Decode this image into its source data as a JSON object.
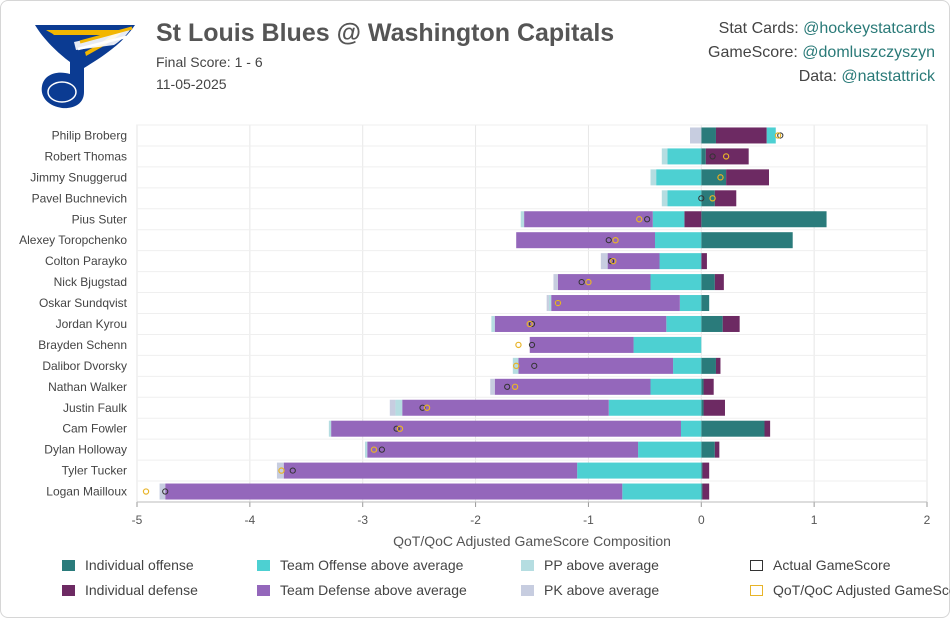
{
  "header": {
    "title": "St Louis Blues @ Washington Capitals",
    "final_score": "Final Score: 1 - 6",
    "date": "11-05-2025"
  },
  "credits": [
    {
      "label": "Stat Cards: ",
      "handle": "@hockeystatcards"
    },
    {
      "label": "GameScore: ",
      "handle": "@domluszczyszyn"
    },
    {
      "label": "Data: ",
      "handle": "@natstattrick"
    }
  ],
  "colors": {
    "individual_offense": "#2a7b7b",
    "individual_defense": "#6d2a63",
    "team_offense": "#4dd0d2",
    "team_defense": "#9467bb",
    "pp": "#b5dde1",
    "pk": "#c7cde0",
    "actual_marker": "#333333",
    "adjusted_marker": "#e8b429",
    "logo_blue": "#0b3b92",
    "logo_gold": "#f2b600"
  },
  "legend": [
    {
      "key": "individual_offense",
      "label": "Individual offense",
      "style": "fill"
    },
    {
      "key": "team_offense",
      "label": "Team Offense above average",
      "style": "fill"
    },
    {
      "key": "pp",
      "label": "PP above average",
      "style": "fill"
    },
    {
      "key": "actual_marker",
      "label": "Actual GameScore",
      "style": "outline"
    },
    {
      "key": "individual_defense",
      "label": "Individual defense",
      "style": "fill"
    },
    {
      "key": "team_defense",
      "label": "Team Defense above average",
      "style": "fill"
    },
    {
      "key": "pk",
      "label": "PK above average",
      "style": "fill"
    },
    {
      "key": "adjusted_marker",
      "label": "QoT/QoC Adjusted GameScore",
      "style": "outline"
    }
  ],
  "chart_data": {
    "type": "bar",
    "orientation": "horizontal",
    "stacked": true,
    "title": "",
    "xlabel": "QoT/QoC Adjusted GameScore Composition",
    "xlim": [
      -5,
      2
    ],
    "xticks": [
      -5,
      -4,
      -3,
      -2,
      -1,
      0,
      1,
      2
    ],
    "grid": true,
    "legend_position": "bottom",
    "categories": [
      "Philip Broberg",
      "Robert Thomas",
      "Jimmy Snuggerud",
      "Pavel Buchnevich",
      "Pius Suter",
      "Alexey Toropchenko",
      "Colton Parayko",
      "Nick Bjugstad",
      "Oskar Sundqvist",
      "Jordan Kyrou",
      "Brayden Schenn",
      "Dalibor Dvorsky",
      "Nathan Walker",
      "Justin Faulk",
      "Cam Fowler",
      "Dylan Holloway",
      "Tyler Tucker",
      "Logan Mailloux"
    ],
    "series": [
      {
        "name": "Individual offense",
        "key": "individual_offense",
        "values": [
          0.13,
          0.04,
          0.22,
          0.12,
          1.11,
          0.81,
          0.0,
          0.12,
          0.07,
          0.19,
          0.0,
          0.13,
          0.02,
          0.02,
          0.56,
          0.12,
          0.01,
          0.01
        ]
      },
      {
        "name": "Individual defense",
        "key": "individual_defense",
        "values": [
          0.45,
          0.38,
          0.38,
          0.19,
          -0.15,
          0.0,
          0.05,
          0.08,
          0.0,
          0.15,
          0.0,
          0.04,
          0.09,
          0.19,
          0.05,
          0.04,
          0.06,
          0.06
        ]
      },
      {
        "name": "Team Offense above average",
        "key": "team_offense",
        "values": [
          0.08,
          -0.3,
          -0.4,
          -0.3,
          -0.28,
          -0.41,
          -0.37,
          -0.45,
          -0.19,
          -0.31,
          -0.6,
          -0.25,
          -0.45,
          -0.82,
          -0.18,
          -0.56,
          -1.1,
          -0.7
        ]
      },
      {
        "name": "Team Defense above average",
        "key": "team_defense",
        "values": [
          0.0,
          0.0,
          0.0,
          0.0,
          -1.14,
          -1.23,
          -0.46,
          -0.82,
          -1.14,
          -1.52,
          -0.92,
          -1.37,
          -1.38,
          -1.83,
          -3.1,
          -2.4,
          -2.6,
          -4.05
        ]
      },
      {
        "name": "PP above average",
        "key": "pp",
        "values": [
          0.0,
          -0.05,
          -0.05,
          -0.05,
          -0.03,
          0.0,
          0.0,
          0.0,
          -0.02,
          -0.03,
          0.0,
          -0.05,
          0.0,
          -0.06,
          -0.02,
          -0.02,
          0.0,
          0.0
        ]
      },
      {
        "name": "PK above average",
        "key": "pk",
        "values": [
          -0.1,
          0.0,
          0.0,
          0.0,
          0.0,
          0.0,
          -0.06,
          -0.04,
          -0.02,
          0.0,
          0.0,
          0.0,
          -0.04,
          -0.05,
          0.0,
          0.0,
          -0.06,
          -0.05
        ]
      }
    ],
    "actual_gamescore": [
      0.7,
      0.1,
      0.17,
      0.0,
      -0.48,
      -0.82,
      -0.8,
      -1.06,
      -1.27,
      -1.5,
      -1.5,
      -1.48,
      -1.72,
      -2.47,
      -2.7,
      -2.83,
      -3.62,
      -4.75
    ],
    "adjusted_gamescore": [
      0.68,
      0.22,
      0.17,
      0.1,
      -0.55,
      -0.76,
      -0.78,
      -1.0,
      -1.27,
      -1.52,
      -1.62,
      -1.64,
      -1.65,
      -2.43,
      -2.67,
      -2.9,
      -3.72,
      -4.92
    ]
  }
}
